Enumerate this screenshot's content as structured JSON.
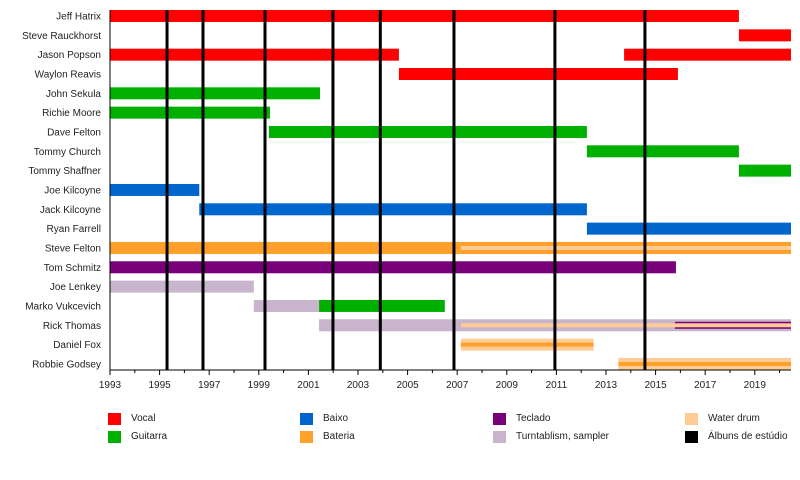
{
  "chart_data": {
    "type": "timeline",
    "title": "",
    "xlim": [
      1993,
      2020.46
    ],
    "x_ticks": [
      1993,
      1995,
      1997,
      1999,
      2001,
      2003,
      2005,
      2007,
      2009,
      2011,
      2013,
      2015,
      2017,
      2019
    ],
    "x_tick_labels": [
      "1993",
      "1995",
      "1997",
      "1999",
      "2001",
      "2003",
      "2005",
      "2007",
      "2009",
      "2011",
      "2013",
      "2015",
      "2017",
      "2019"
    ],
    "roles": {
      "vocal": {
        "label": "Vocal",
        "color": "#ff0000"
      },
      "guitarra": {
        "label": "Guitarra",
        "color": "#00b000"
      },
      "baixo": {
        "label": "Baixo",
        "color": "#0066cc"
      },
      "bateria": {
        "label": "Bateria",
        "color": "#ffa02a"
      },
      "teclado": {
        "label": "Teclado",
        "color": "#780078"
      },
      "turntablism": {
        "label": "Turntablism, sampler",
        "color": "#c8b4cc"
      },
      "water_drum": {
        "label": "Water drum",
        "color": "#ffcc96"
      },
      "albuns": {
        "label": "Álbuns de estúdio",
        "color": "#000000"
      }
    },
    "legend_order": [
      [
        "vocal",
        "guitarra"
      ],
      [
        "baixo",
        "bateria"
      ],
      [
        "teclado",
        "turntablism"
      ],
      [
        "water_drum",
        "albuns"
      ]
    ],
    "albums": [
      1995.3,
      1996.75,
      1999.25,
      2001.99,
      2003.9,
      2006.87,
      2010.94,
      2014.57
    ],
    "members": [
      {
        "name": "Jeff Hatrix",
        "bars": [
          {
            "role": "vocal",
            "start": 1993,
            "end": 2018.36
          }
        ]
      },
      {
        "name": "Steve Rauckhorst",
        "bars": [
          {
            "role": "vocal",
            "start": 2018.36,
            "end": 2020.46
          }
        ]
      },
      {
        "name": "Jason Popson",
        "bars": [
          {
            "role": "vocal",
            "start": 1993,
            "end": 2004.65
          },
          {
            "role": "vocal",
            "start": 2013.73,
            "end": 2020.46
          }
        ]
      },
      {
        "name": "Waylon Reavis",
        "bars": [
          {
            "role": "vocal",
            "start": 2004.65,
            "end": 2015.9
          }
        ]
      },
      {
        "name": "John Sekula",
        "bars": [
          {
            "role": "guitarra",
            "start": 1993,
            "end": 2001.47
          }
        ]
      },
      {
        "name": "Richie Moore",
        "bars": [
          {
            "role": "guitarra",
            "start": 1993,
            "end": 1999.45
          }
        ]
      },
      {
        "name": "Dave Felton",
        "bars": [
          {
            "role": "guitarra",
            "start": 1999.41,
            "end": 2012.23
          }
        ]
      },
      {
        "name": "Tommy Church",
        "bars": [
          {
            "role": "guitarra",
            "start": 2012.23,
            "end": 2018.36
          }
        ]
      },
      {
        "name": "Tommy Shaffner",
        "bars": [
          {
            "role": "guitarra",
            "start": 2018.36,
            "end": 2020.46
          }
        ]
      },
      {
        "name": "Joe Kilcoyne",
        "bars": [
          {
            "role": "baixo",
            "start": 1993,
            "end": 1996.6
          }
        ]
      },
      {
        "name": "Jack Kilcoyne",
        "bars": [
          {
            "role": "baixo",
            "start": 1996.6,
            "end": 2012.23
          }
        ]
      },
      {
        "name": "Ryan Farrell",
        "bars": [
          {
            "role": "baixo",
            "start": 2012.23,
            "end": 2020.46
          }
        ]
      },
      {
        "name": "Steve Felton",
        "bars": [
          {
            "role": "bateria",
            "start": 1993,
            "end": 2020.46
          },
          {
            "role": "water_drum",
            "start": 2007.15,
            "end": 2020.46,
            "layer": "stripe"
          }
        ]
      },
      {
        "name": "Tom Schmitz",
        "bars": [
          {
            "role": "teclado",
            "start": 1993,
            "end": 2015.82
          }
        ]
      },
      {
        "name": "Joe Lenkey",
        "bars": [
          {
            "role": "turntablism",
            "start": 1993,
            "end": 1998.8
          }
        ]
      },
      {
        "name": "Marko Vukcevich",
        "bars": [
          {
            "role": "turntablism",
            "start": 1998.8,
            "end": 2001.43
          },
          {
            "role": "guitarra",
            "start": 2001.43,
            "end": 2006.5
          }
        ]
      },
      {
        "name": "Rick Thomas",
        "bars": [
          {
            "role": "turntablism",
            "start": 2001.43,
            "end": 2020.46
          },
          {
            "role": "teclado",
            "start": 2015.78,
            "end": 2020.46,
            "layer": "mid"
          },
          {
            "role": "water_drum",
            "start": 2007.15,
            "end": 2020.46,
            "layer": "stripe"
          }
        ]
      },
      {
        "name": "Daniel Fox",
        "bars": [
          {
            "role": "water_drum",
            "start": 2007.15,
            "end": 2012.5
          },
          {
            "role": "bateria",
            "start": 2007.15,
            "end": 2012.5,
            "layer": "stripe"
          }
        ]
      },
      {
        "name": "Robbie Godsey",
        "bars": [
          {
            "role": "water_drum",
            "start": 2013.5,
            "end": 2020.46
          },
          {
            "role": "bateria",
            "start": 2013.5,
            "end": 2020.46,
            "layer": "stripe"
          }
        ]
      }
    ]
  }
}
